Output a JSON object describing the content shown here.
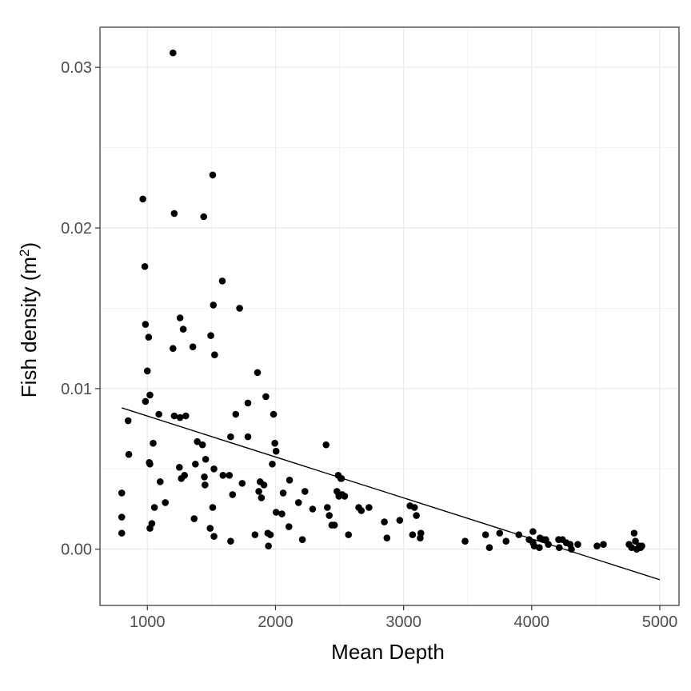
{
  "chart_data": {
    "type": "scatter",
    "title": "",
    "xlabel": "Mean Depth",
    "ylabel_main": "Fish density (m",
    "ylabel_sup": "2",
    "ylabel_close": ")",
    "xlim": [
      630,
      5150
    ],
    "ylim": [
      -0.0035,
      0.0325
    ],
    "x_ticks": [
      1000,
      2000,
      3000,
      4000,
      5000
    ],
    "x_tick_labels": [
      "1000",
      "2000",
      "3000",
      "4000",
      "5000"
    ],
    "y_ticks": [
      0.0,
      0.01,
      0.02,
      0.03
    ],
    "y_tick_labels": [
      "0.00",
      "0.01",
      "0.02",
      "0.03"
    ],
    "grid": true,
    "legend": "none",
    "colors": {
      "points": "#000000",
      "trend": "#000000",
      "grid_major": "#ebebeb",
      "grid_minor": "#f3f3f3",
      "panel_border": "#333333",
      "tick_text": "#4d4d4d"
    },
    "trend_line": {
      "x": [
        800,
        5000
      ],
      "y": [
        0.0088,
        -0.0019
      ]
    },
    "points": [
      [
        800,
        0.0035
      ],
      [
        800,
        0.002
      ],
      [
        800,
        0.001
      ],
      [
        850,
        0.008
      ],
      [
        855,
        0.0059
      ],
      [
        965,
        0.0218
      ],
      [
        980,
        0.0176
      ],
      [
        985,
        0.014
      ],
      [
        985,
        0.0092
      ],
      [
        1000,
        0.0111
      ],
      [
        1010,
        0.0132
      ],
      [
        1020,
        0.0096
      ],
      [
        1015,
        0.0054
      ],
      [
        1020,
        0.0053
      ],
      [
        1020,
        0.0013
      ],
      [
        1035,
        0.0016
      ],
      [
        1045,
        0.0066
      ],
      [
        1055,
        0.0026
      ],
      [
        1090,
        0.0084
      ],
      [
        1100,
        0.0042
      ],
      [
        1140,
        0.0029
      ],
      [
        1200,
        0.0309
      ],
      [
        1210,
        0.0209
      ],
      [
        1200,
        0.0125
      ],
      [
        1210,
        0.0083
      ],
      [
        1255,
        0.0144
      ],
      [
        1255,
        0.0082
      ],
      [
        1250,
        0.0051
      ],
      [
        1265,
        0.0044
      ],
      [
        1280,
        0.0137
      ],
      [
        1290,
        0.0046
      ],
      [
        1300,
        0.0083
      ],
      [
        1355,
        0.0126
      ],
      [
        1375,
        0.0053
      ],
      [
        1390,
        0.0067
      ],
      [
        1365,
        0.0019
      ],
      [
        1440,
        0.0207
      ],
      [
        1430,
        0.0065
      ],
      [
        1445,
        0.0045
      ],
      [
        1450,
        0.004
      ],
      [
        1455,
        0.0056
      ],
      [
        1495,
        0.0133
      ],
      [
        1490,
        0.0013
      ],
      [
        1510,
        0.0233
      ],
      [
        1515,
        0.0152
      ],
      [
        1525,
        0.0121
      ],
      [
        1520,
        0.005
      ],
      [
        1510,
        0.0026
      ],
      [
        1520,
        0.0008
      ],
      [
        1585,
        0.0167
      ],
      [
        1590,
        0.0046
      ],
      [
        1640,
        0.0046
      ],
      [
        1650,
        0.007
      ],
      [
        1650,
        0.0005
      ],
      [
        1665,
        0.0034
      ],
      [
        1690,
        0.0084
      ],
      [
        1720,
        0.015
      ],
      [
        1740,
        0.0041
      ],
      [
        1785,
        0.0091
      ],
      [
        1785,
        0.007
      ],
      [
        1840,
        0.0009
      ],
      [
        1860,
        0.011
      ],
      [
        1870,
        0.0036
      ],
      [
        1880,
        0.0042
      ],
      [
        1890,
        0.0032
      ],
      [
        1910,
        0.004
      ],
      [
        1925,
        0.0095
      ],
      [
        1940,
        0.001
      ],
      [
        1945,
        0.0002
      ],
      [
        1960,
        0.0009
      ],
      [
        1975,
        0.0053
      ],
      [
        1985,
        0.0084
      ],
      [
        1995,
        0.0066
      ],
      [
        2005,
        0.0061
      ],
      [
        2005,
        0.0023
      ],
      [
        2050,
        0.0022
      ],
      [
        2060,
        0.0035
      ],
      [
        2110,
        0.0043
      ],
      [
        2105,
        0.0014
      ],
      [
        2180,
        0.0029
      ],
      [
        2210,
        0.0006
      ],
      [
        2230,
        0.0036
      ],
      [
        2290,
        0.0025
      ],
      [
        2395,
        0.0065
      ],
      [
        2405,
        0.0026
      ],
      [
        2420,
        0.0021
      ],
      [
        2440,
        0.0015
      ],
      [
        2460,
        0.0015
      ],
      [
        2480,
        0.0036
      ],
      [
        2490,
        0.0046
      ],
      [
        2495,
        0.0033
      ],
      [
        2510,
        0.0044
      ],
      [
        2515,
        0.0044
      ],
      [
        2520,
        0.0034
      ],
      [
        2540,
        0.0033
      ],
      [
        2570,
        0.0009
      ],
      [
        2650,
        0.0026
      ],
      [
        2670,
        0.0024
      ],
      [
        2730,
        0.0026
      ],
      [
        2850,
        0.0017
      ],
      [
        2870,
        0.0007
      ],
      [
        2970,
        0.0018
      ],
      [
        3050,
        0.0027
      ],
      [
        3070,
        0.0009
      ],
      [
        3085,
        0.0026
      ],
      [
        3100,
        0.0021
      ],
      [
        3130,
        0.0007
      ],
      [
        3135,
        0.001
      ],
      [
        3480,
        0.0005
      ],
      [
        3640,
        0.0009
      ],
      [
        3670,
        0.0001
      ],
      [
        3750,
        0.001
      ],
      [
        3800,
        0.0005
      ],
      [
        3900,
        0.0009
      ],
      [
        3980,
        0.0006
      ],
      [
        4010,
        0.0011
      ],
      [
        4010,
        0.0004
      ],
      [
        4020,
        0.0002
      ],
      [
        4060,
        0.0001
      ],
      [
        4065,
        0.0007
      ],
      [
        4090,
        0.0006
      ],
      [
        4110,
        0.0006
      ],
      [
        4130,
        0.0003
      ],
      [
        4210,
        0.0006
      ],
      [
        4215,
        0.0001
      ],
      [
        4240,
        0.0006
      ],
      [
        4270,
        0.0004
      ],
      [
        4300,
        0.0003
      ],
      [
        4310,
        0.0
      ],
      [
        4360,
        0.0003
      ],
      [
        4510,
        0.0002
      ],
      [
        4560,
        0.0003
      ],
      [
        4760,
        0.0003
      ],
      [
        4780,
        0.0001
      ],
      [
        4800,
        0.001
      ],
      [
        4810,
        0.0005
      ],
      [
        4820,
        0.0
      ],
      [
        4840,
        0.0002
      ],
      [
        4850,
        0.0001
      ],
      [
        4860,
        0.0002
      ]
    ]
  }
}
